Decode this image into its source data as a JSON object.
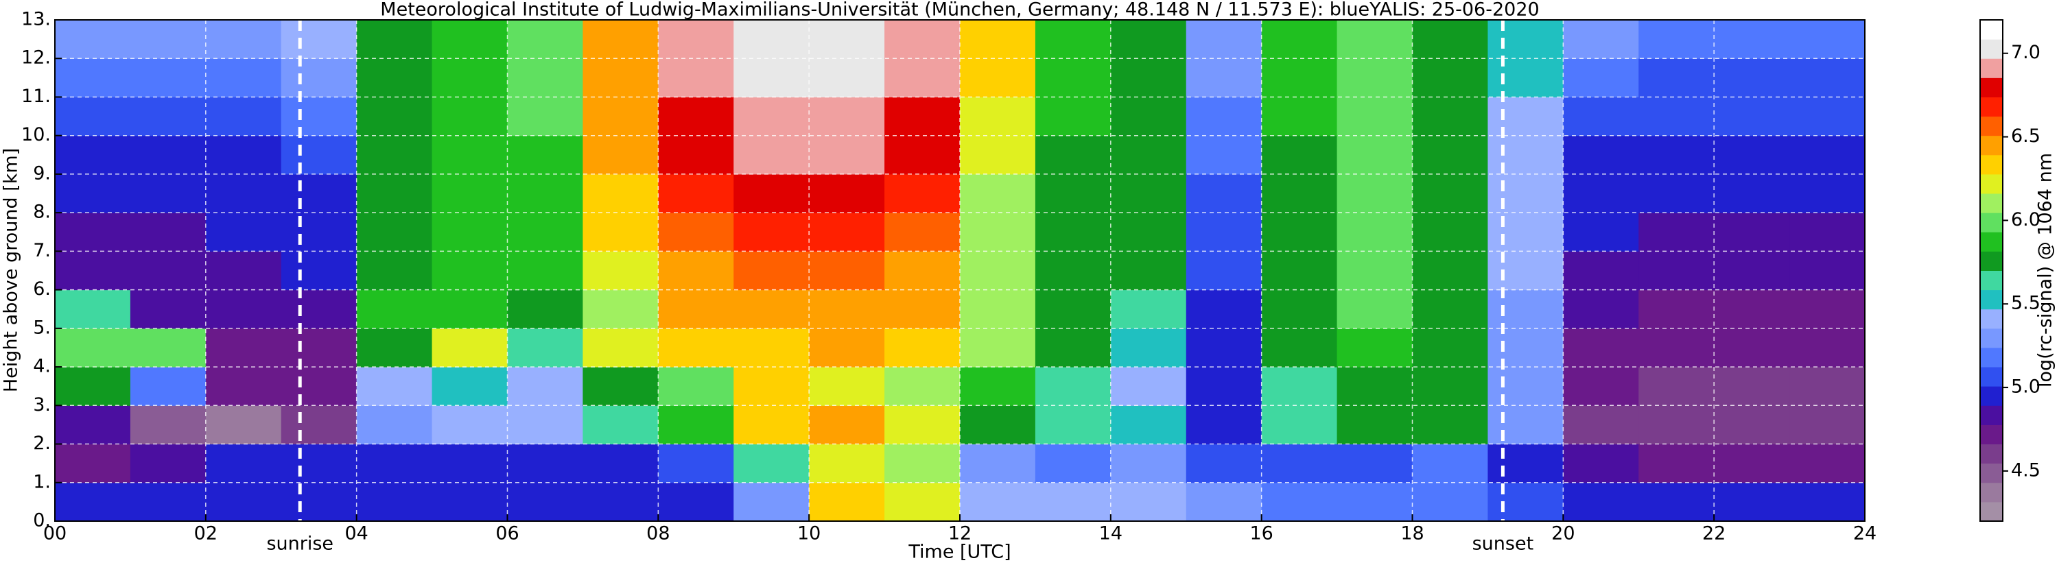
{
  "chart_data": {
    "type": "heatmap",
    "title": "Meteorological Institute of Ludwig-Maximilians-Universität (München, Germany; 48.148 N / 11.573 E):    blueYALIS: 25-06-2020",
    "xlabel": "Time [UTC]",
    "ylabel": "Height above ground [km]",
    "xlim": [
      0,
      24
    ],
    "ylim": [
      0,
      13
    ],
    "x_edges": [
      0,
      1,
      2,
      3,
      4,
      5,
      6,
      7,
      8,
      9,
      10,
      11,
      12,
      13,
      14,
      15,
      16,
      17,
      18,
      19,
      20,
      21,
      22,
      23,
      24
    ],
    "y_edges": [
      0,
      1,
      2,
      3,
      4,
      5,
      6,
      7,
      8,
      9,
      10,
      11,
      12,
      13
    ],
    "xticks": [
      {
        "value": 0,
        "label": "00"
      },
      {
        "value": 2,
        "label": "02"
      },
      {
        "value": 4,
        "label": "04"
      },
      {
        "value": 6,
        "label": "06"
      },
      {
        "value": 8,
        "label": "08"
      },
      10,
      12,
      14,
      16,
      18,
      20,
      22,
      24
    ],
    "yticks": [
      {
        "value": 0,
        "label": "0."
      },
      {
        "value": 1,
        "label": "1."
      },
      {
        "value": 2,
        "label": "2."
      },
      {
        "value": 3,
        "label": "3."
      },
      {
        "value": 4,
        "label": "4."
      },
      {
        "value": 5,
        "label": "5."
      },
      {
        "value": 6,
        "label": "6."
      },
      {
        "value": 7,
        "label": "7."
      },
      {
        "value": 8,
        "label": "8."
      },
      {
        "value": 9,
        "label": "9."
      },
      {
        "value": 10,
        "label": "10."
      },
      {
        "value": 11,
        "label": "11."
      },
      {
        "value": 12,
        "label": "12."
      },
      {
        "value": 13,
        "label": "13."
      }
    ],
    "grid": true,
    "values": [
      [
        4.95,
        4.95,
        4.95,
        4.95,
        5.0,
        5.0,
        5.0,
        5.0,
        5.0,
        5.3,
        6.3,
        6.2,
        5.4,
        5.4,
        5.4,
        5.3,
        5.2,
        5.2,
        5.2,
        5.1,
        4.95,
        4.95,
        4.95,
        4.95
      ],
      [
        4.75,
        4.8,
        4.9,
        4.9,
        4.95,
        5.0,
        5.0,
        5.0,
        5.1,
        5.6,
        6.2,
        6.1,
        5.3,
        5.2,
        5.3,
        5.1,
        5.1,
        5.1,
        5.2,
        5.0,
        4.8,
        4.7,
        4.7,
        4.7
      ],
      [
        4.8,
        4.5,
        4.4,
        4.6,
        5.3,
        5.4,
        5.4,
        5.6,
        5.9,
        6.3,
        6.5,
        6.2,
        5.8,
        5.6,
        5.5,
        5.0,
        5.6,
        5.8,
        5.7,
        5.3,
        4.6,
        4.55,
        4.55,
        4.55
      ],
      [
        5.8,
        5.2,
        4.7,
        4.7,
        5.4,
        5.5,
        5.4,
        5.8,
        6.0,
        6.3,
        6.2,
        6.1,
        5.9,
        5.6,
        5.4,
        5.0,
        5.6,
        5.8,
        5.7,
        5.3,
        4.7,
        4.6,
        4.6,
        4.6
      ],
      [
        6.0,
        6.0,
        4.7,
        4.7,
        5.8,
        6.2,
        5.6,
        6.2,
        6.3,
        6.3,
        6.4,
        6.3,
        6.1,
        5.7,
        5.5,
        5.0,
        5.7,
        5.9,
        5.8,
        5.3,
        4.75,
        4.7,
        4.7,
        4.7
      ],
      [
        5.6,
        4.8,
        4.8,
        4.8,
        5.9,
        5.9,
        5.7,
        6.1,
        6.4,
        6.5,
        6.5,
        6.4,
        6.1,
        5.7,
        5.6,
        5.0,
        5.8,
        6.0,
        5.8,
        5.3,
        4.8,
        4.75,
        4.75,
        4.75
      ],
      [
        4.8,
        4.8,
        4.85,
        4.9,
        5.8,
        5.9,
        5.9,
        6.2,
        6.5,
        6.6,
        6.6,
        6.5,
        6.1,
        5.8,
        5.7,
        5.1,
        5.8,
        6.0,
        5.8,
        5.4,
        4.85,
        4.8,
        4.8,
        4.8
      ],
      [
        4.85,
        4.85,
        4.9,
        5.0,
        5.8,
        5.9,
        5.9,
        6.3,
        6.6,
        6.7,
        6.7,
        6.6,
        6.1,
        5.8,
        5.7,
        5.1,
        5.8,
        6.0,
        5.8,
        5.4,
        4.9,
        4.85,
        4.85,
        4.85
      ],
      [
        4.9,
        4.9,
        4.95,
        5.0,
        5.8,
        5.9,
        5.9,
        6.3,
        6.7,
        6.8,
        6.8,
        6.7,
        6.1,
        5.8,
        5.7,
        5.1,
        5.8,
        6.0,
        5.8,
        5.4,
        4.95,
        4.9,
        4.9,
        4.9
      ],
      [
        5.0,
        5.0,
        5.0,
        5.1,
        5.8,
        5.9,
        5.9,
        6.4,
        6.8,
        6.9,
        6.9,
        6.8,
        6.2,
        5.8,
        5.7,
        5.2,
        5.8,
        6.0,
        5.8,
        5.4,
        5.0,
        5.0,
        5.0,
        5.0
      ],
      [
        5.1,
        5.1,
        5.1,
        5.2,
        5.8,
        5.9,
        6.0,
        6.4,
        6.8,
        6.9,
        6.9,
        6.8,
        6.2,
        5.9,
        5.7,
        5.2,
        5.9,
        6.0,
        5.8,
        5.4,
        5.1,
        5.05,
        5.05,
        5.05
      ],
      [
        5.2,
        5.2,
        5.2,
        5.3,
        5.8,
        5.9,
        6.0,
        6.5,
        6.9,
        7.0,
        7.0,
        6.9,
        6.3,
        5.9,
        5.8,
        5.3,
        5.9,
        6.0,
        5.8,
        5.5,
        5.2,
        5.1,
        5.1,
        5.1
      ],
      [
        5.3,
        5.3,
        5.3,
        5.4,
        5.8,
        5.9,
        6.0,
        6.5,
        6.9,
        7.0,
        7.0,
        6.9,
        6.3,
        5.9,
        5.8,
        5.3,
        5.9,
        6.0,
        5.8,
        5.5,
        5.3,
        5.2,
        5.2,
        5.2
      ]
    ],
    "annotations": [
      {
        "text": "sunrise",
        "x": 3.25
      },
      {
        "text": "sunset",
        "x": 19.2
      }
    ],
    "colorbar": {
      "label": "log(rc-signal) @ 1064 nm",
      "clim": [
        4.2,
        7.2
      ],
      "ticks": [
        4.5,
        {
          "value": 5,
          "label": "5.0"
        },
        5.5,
        {
          "value": 6,
          "label": "6.0"
        },
        6.5,
        {
          "value": 7,
          "label": "7.0"
        }
      ],
      "colors": [
        "#a48fa6",
        "#9a7a9e",
        "#8a5c95",
        "#7a3d8c",
        "#6a1a8a",
        "#4b0fa0",
        "#2020d0",
        "#3050f0",
        "#5078ff",
        "#7898ff",
        "#98b0ff",
        "#20c0c0",
        "#40d8a0",
        "#109a20",
        "#20c020",
        "#60e060",
        "#a0f060",
        "#e0f020",
        "#ffd000",
        "#ffa000",
        "#ff6000",
        "#ff2000",
        "#e00000",
        "#f0a0a0",
        "#e8e8e8",
        "#ffffff"
      ]
    }
  }
}
